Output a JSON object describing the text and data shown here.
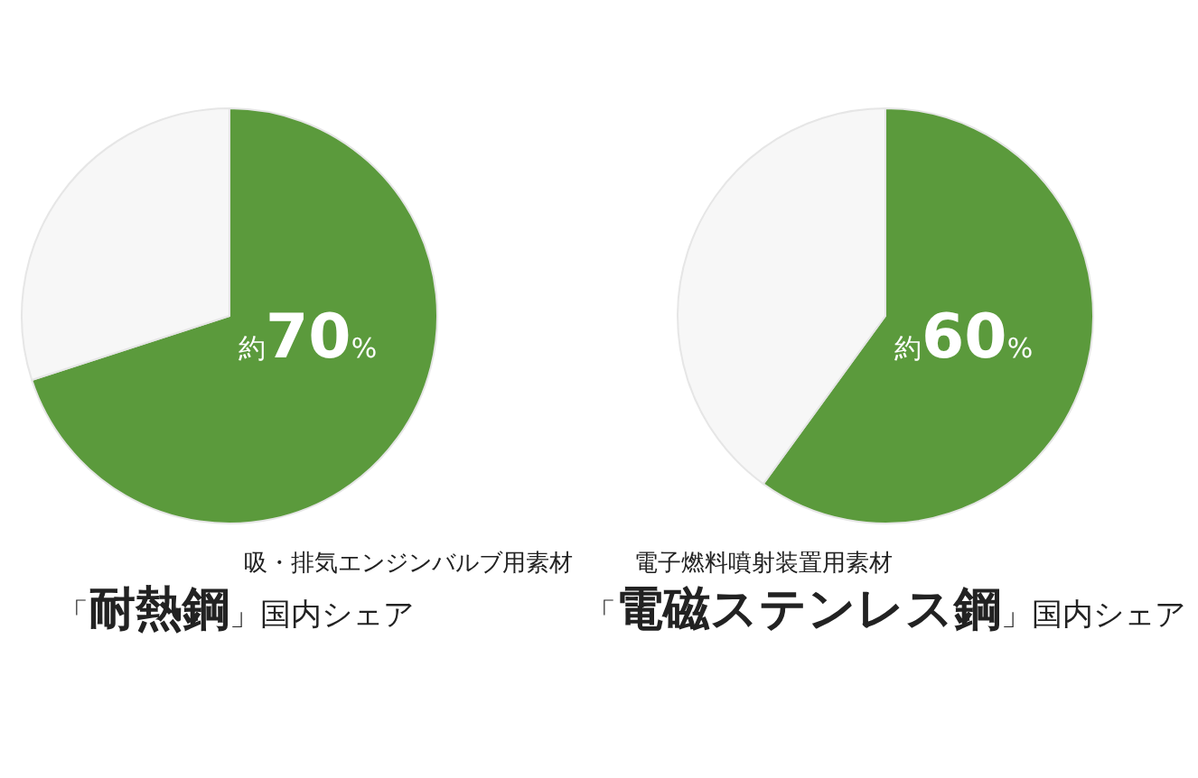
{
  "chart_data": [
    {
      "type": "pie",
      "categories": [
        null,
        null
      ],
      "values": [
        70,
        30
      ],
      "colors": [
        "#5b9a3c",
        "#f7f7f7"
      ],
      "value_labels": [
        "約70%",
        null
      ],
      "subtitle": "吸・排気エンジンバルブ用素材",
      "title": "「耐熱鋼」国内シェア",
      "legend": false
    },
    {
      "type": "pie",
      "categories": [
        null,
        null
      ],
      "values": [
        60,
        40
      ],
      "colors": [
        "#5b9a3c",
        "#f7f7f7"
      ],
      "value_labels": [
        "約60%",
        null
      ],
      "subtitle": "電子燃料噴射装置用素材",
      "title": "「電磁ステンレス鋼」国内シェア",
      "legend": false
    }
  ]
}
